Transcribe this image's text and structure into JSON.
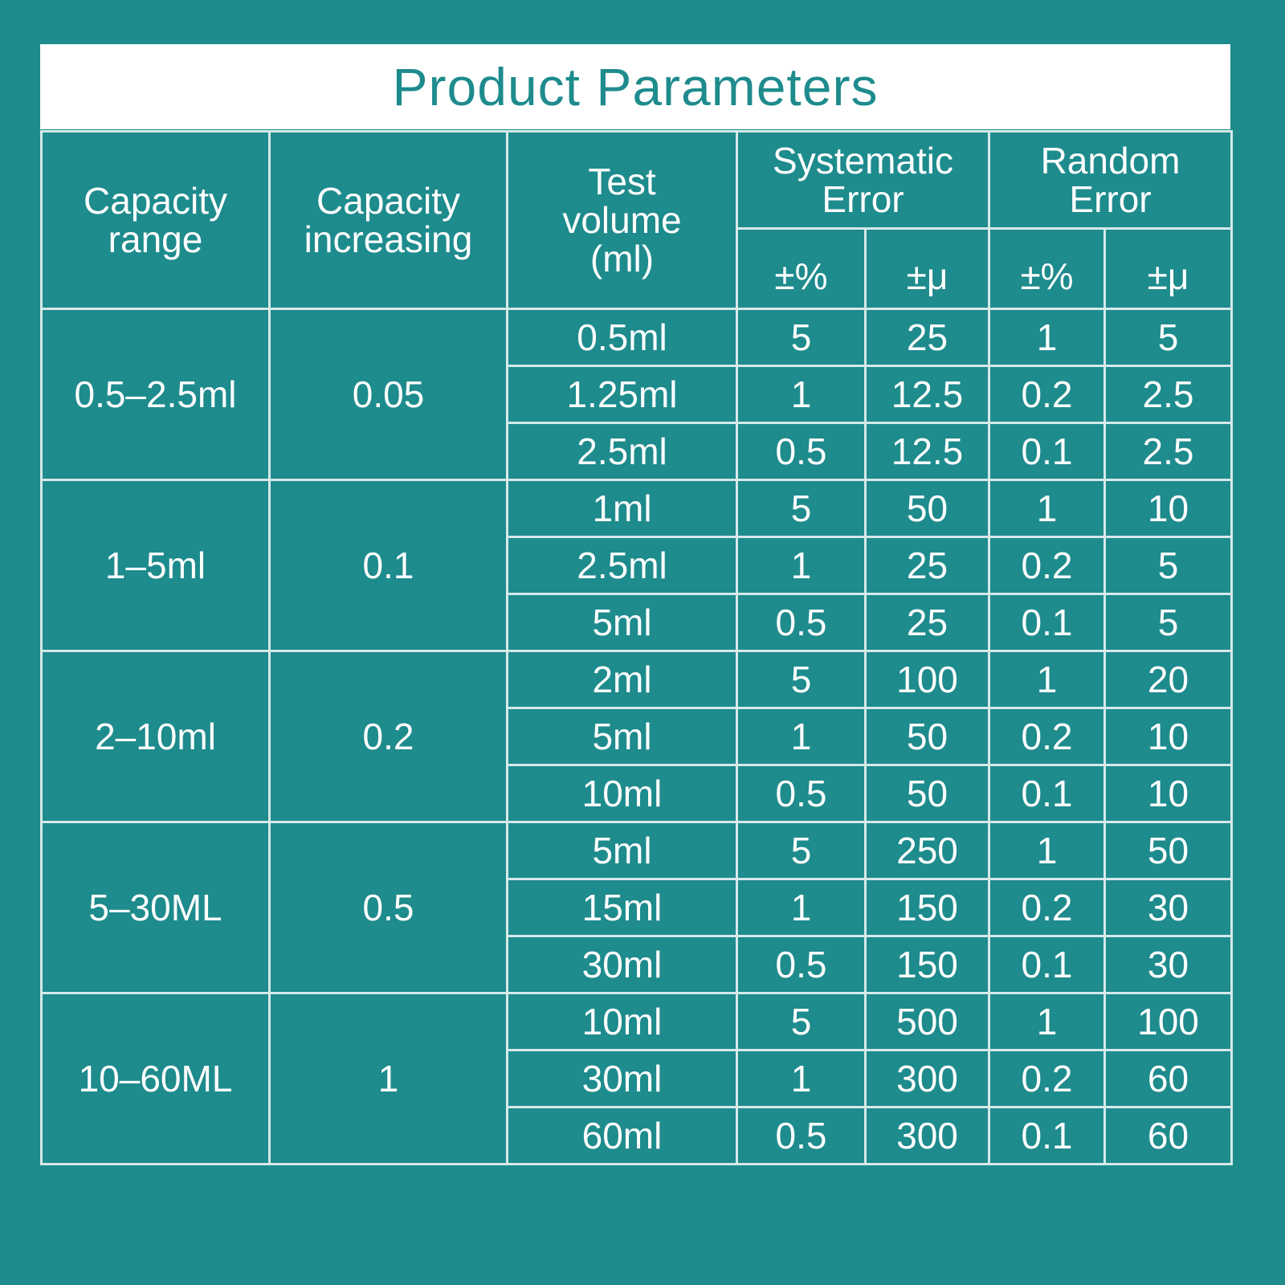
{
  "title": "Product Parameters",
  "table": {
    "header": {
      "capacity_range": [
        "Capacity",
        "range"
      ],
      "capacity_increasing": [
        "Capacity",
        "increasing"
      ],
      "test_volume": [
        "Test",
        "volume",
        "(ml)"
      ],
      "systematic_error": [
        "Systematic",
        "Error"
      ],
      "random_error": [
        "Random",
        "Error"
      ],
      "sub": [
        "±%",
        "±μ",
        "±%",
        "±μ"
      ]
    },
    "groups": [
      {
        "range": "0.5–2.5ml",
        "increasing": "0.05",
        "rows": [
          [
            "0.5ml",
            "5",
            "25",
            "1",
            "5"
          ],
          [
            "1.25ml",
            "1",
            "12.5",
            "0.2",
            "2.5"
          ],
          [
            "2.5ml",
            "0.5",
            "12.5",
            "0.1",
            "2.5"
          ]
        ]
      },
      {
        "range": "1–5ml",
        "increasing": "0.1",
        "rows": [
          [
            "1ml",
            "5",
            "50",
            "1",
            "10"
          ],
          [
            "2.5ml",
            "1",
            "25",
            "0.2",
            "5"
          ],
          [
            "5ml",
            "0.5",
            "25",
            "0.1",
            "5"
          ]
        ]
      },
      {
        "range": "2–10ml",
        "increasing": "0.2",
        "rows": [
          [
            "2ml",
            "5",
            "100",
            "1",
            "20"
          ],
          [
            "5ml",
            "1",
            "50",
            "0.2",
            "10"
          ],
          [
            "10ml",
            "0.5",
            "50",
            "0.1",
            "10"
          ]
        ]
      },
      {
        "range": "5–30ML",
        "increasing": "0.5",
        "rows": [
          [
            "5ml",
            "5",
            "250",
            "1",
            "50"
          ],
          [
            "15ml",
            "1",
            "150",
            "0.2",
            "30"
          ],
          [
            "30ml",
            "0.5",
            "150",
            "0.1",
            "30"
          ]
        ]
      },
      {
        "range": "10–60ML",
        "increasing": "1",
        "rows": [
          [
            "10ml",
            "5",
            "500",
            "1",
            "100"
          ],
          [
            "30ml",
            "1",
            "300",
            "0.2",
            "60"
          ],
          [
            "60ml",
            "0.5",
            "300",
            "0.1",
            "60"
          ]
        ]
      }
    ]
  }
}
